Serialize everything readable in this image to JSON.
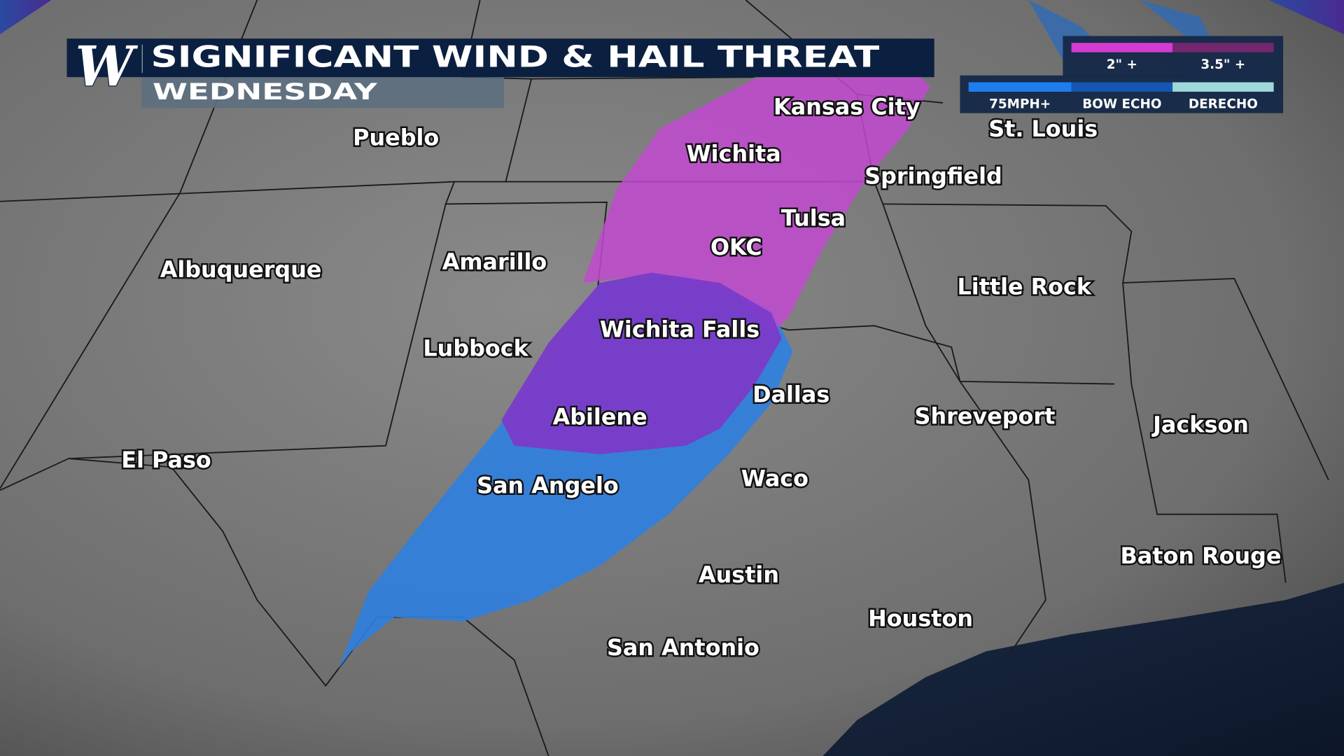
{
  "header": {
    "title": "SIGNIFICANT WIND & HAIL THREAT",
    "subtitle": "WEDNESDAY",
    "logo": "W"
  },
  "legend": {
    "hail": {
      "labels": [
        "2\" +",
        "3.5\" +"
      ],
      "colors": [
        "#d43bd0",
        "#72276e"
      ]
    },
    "wind": {
      "labels": [
        "75MPH+",
        "BOW ECHO",
        "DERECHO"
      ],
      "colors": [
        "#1e7ef0",
        "#1556b4",
        "#9fd8d8"
      ]
    }
  },
  "threat_colors": {
    "hail": "#c24ad0",
    "wind": "#2f7fe0",
    "overlap": "#7a3bc8"
  },
  "cities": [
    "Kansas City",
    "St. Louis",
    "Wichita",
    "Springfield",
    "Pueblo",
    "Tulsa",
    "OKC",
    "Amarillo",
    "Albuquerque",
    "Little Rock",
    "Wichita Falls",
    "Lubbock",
    "Dallas",
    "Shreveport",
    "Jackson",
    "Abilene",
    "El Paso",
    "San Angelo",
    "Waco",
    "Baton Rouge",
    "Austin",
    "Houston",
    "San Antonio"
  ]
}
